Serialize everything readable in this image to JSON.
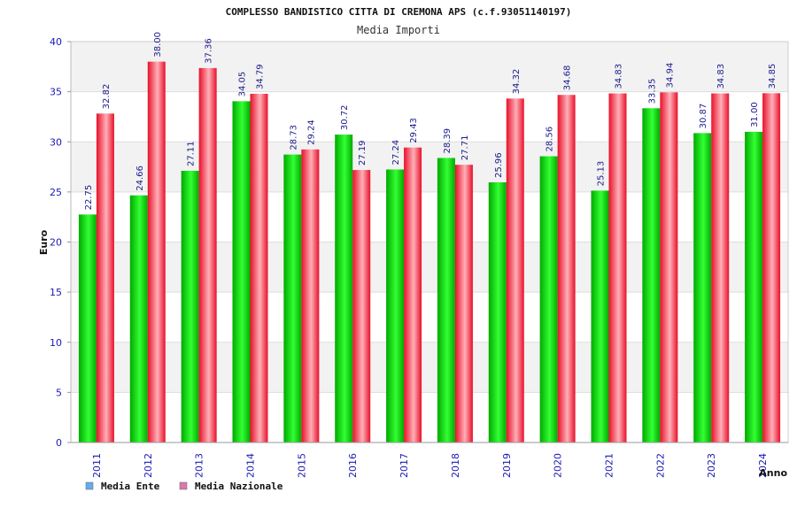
{
  "chart_data": {
    "type": "bar",
    "title": "COMPLESSO BANDISTICO CITTA DI CREMONA APS (c.f.93051140197)",
    "subtitle": "Media Importi",
    "xlabel": "Anno",
    "ylabel": "Euro",
    "ylim": [
      0,
      40
    ],
    "yticks": [
      0,
      5,
      10,
      15,
      20,
      25,
      30,
      35,
      40
    ],
    "categories": [
      "2011",
      "2012",
      "2013",
      "2014",
      "2015",
      "2016",
      "2017",
      "2018",
      "2019",
      "2020",
      "2021",
      "2022",
      "2023",
      "2024"
    ],
    "series": [
      {
        "name": "Media Ente",
        "legend_color": "#66aaee",
        "bar_colors": [
          "#00aa00",
          "#33ff33"
        ],
        "values": [
          22.75,
          24.66,
          27.11,
          34.05,
          28.73,
          30.72,
          27.24,
          28.39,
          25.96,
          28.56,
          25.13,
          33.35,
          30.87,
          31.0
        ],
        "labels": [
          "22.75",
          "24.66",
          "27.11",
          "34.05",
          "28.73",
          "30.72",
          "27.24",
          "28.39",
          "25.96",
          "28.56",
          "25.13",
          "33.35",
          "30.87",
          "31.00"
        ]
      },
      {
        "name": "Media Nazionale",
        "legend_color": "#dd77aa",
        "bar_colors": [
          "#e8102a",
          "#ffb0b8"
        ],
        "values": [
          32.82,
          38.0,
          37.36,
          34.79,
          29.24,
          27.19,
          29.43,
          27.71,
          34.32,
          34.68,
          34.83,
          34.94,
          34.83,
          34.85
        ],
        "labels": [
          "32.82",
          "38.00",
          "37.36",
          "34.79",
          "29.24",
          "27.19",
          "29.43",
          "27.71",
          "34.32",
          "34.68",
          "34.83",
          "34.94",
          "34.83",
          "34.85"
        ]
      }
    ],
    "grid": true,
    "legend_position": "bottom-left"
  }
}
